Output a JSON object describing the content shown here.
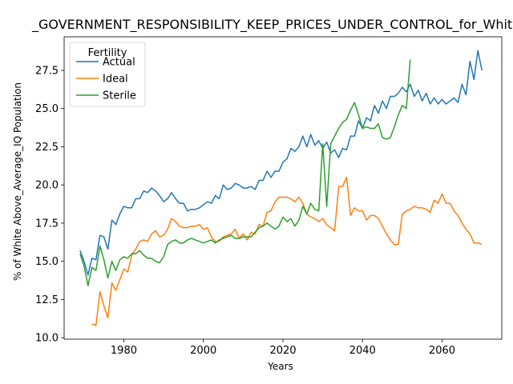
{
  "chart_data": {
    "type": "line",
    "title": "_GOVERNMENT_RESPONSIBILITY_KEEP_PRICES_UNDER_CONTROL_for_White_A",
    "xlabel": "Years",
    "ylabel": "% of White Above_Average_IQ Population",
    "xlim": [
      1965,
      2075
    ],
    "ylim": [
      9.9,
      29.7
    ],
    "xticks": [
      1980,
      2000,
      2020,
      2040,
      2060
    ],
    "yticks": [
      10.0,
      12.5,
      15.0,
      17.5,
      20.0,
      22.5,
      25.0,
      27.5
    ],
    "ytick_labels": [
      "10.0",
      "12.5",
      "15.0",
      "17.5",
      "20.0",
      "22.5",
      "25.0",
      "27.5"
    ],
    "legend": {
      "title": "Fertility",
      "position": "top-left"
    },
    "series": [
      {
        "name": "Actual",
        "color": "#1f77b4",
        "x": [
          1969,
          1970,
          1971,
          1972,
          1973,
          1974,
          1975,
          1976,
          1977,
          1978,
          1979,
          1980,
          1981,
          1982,
          1983,
          1984,
          1985,
          1986,
          1987,
          1988,
          1989,
          1990,
          1991,
          1992,
          1993,
          1994,
          1995,
          1996,
          1997,
          1998,
          1999,
          2000,
          2001,
          2002,
          2003,
          2004,
          2005,
          2006,
          2007,
          2008,
          2009,
          2010,
          2011,
          2012,
          2013,
          2014,
          2015,
          2016,
          2017,
          2018,
          2019,
          2020,
          2021,
          2022,
          2023,
          2024,
          2025,
          2026,
          2027,
          2028,
          2029,
          2030,
          2031,
          2032,
          2033,
          2034,
          2035,
          2036,
          2037,
          2038,
          2039,
          2040,
          2041,
          2042,
          2043,
          2044,
          2045,
          2046,
          2047,
          2048,
          2049,
          2050,
          2051,
          2052,
          2053,
          2054,
          2055,
          2056,
          2057,
          2058,
          2059,
          2060,
          2061,
          2062,
          2063,
          2064,
          2065,
          2066,
          2067,
          2068,
          2069,
          2070
        ],
        "y": [
          15.7,
          15.0,
          14.1,
          15.2,
          15.1,
          16.7,
          16.6,
          15.8,
          17.7,
          17.4,
          18.1,
          18.6,
          18.5,
          18.5,
          19.1,
          19.1,
          19.6,
          19.5,
          19.8,
          19.6,
          19.3,
          18.9,
          19.1,
          19.5,
          19.1,
          18.8,
          18.8,
          18.3,
          18.4,
          18.4,
          18.5,
          18.7,
          18.9,
          18.8,
          19.3,
          19.1,
          20.0,
          19.7,
          19.8,
          20.1,
          20.0,
          19.8,
          19.8,
          19.9,
          19.7,
          20.3,
          20.3,
          20.9,
          20.5,
          20.9,
          20.9,
          21.5,
          21.7,
          22.4,
          22.2,
          22.5,
          23.2,
          22.5,
          23.3,
          22.6,
          22.9,
          22.4,
          22.8,
          22.1,
          22.3,
          21.8,
          22.4,
          22.3,
          23.2,
          23.2,
          24.2,
          23.7,
          24.4,
          24.2,
          25.2,
          24.7,
          25.5,
          25.0,
          25.8,
          25.8,
          26.0,
          26.4,
          26.1,
          26.6,
          25.8,
          26.2,
          25.5,
          26.0,
          25.3,
          25.7,
          25.3,
          25.6,
          25.3,
          25.5,
          25.7,
          25.4,
          26.6,
          25.9,
          28.1,
          26.9,
          28.8,
          27.5
        ]
      },
      {
        "name": "Ideal",
        "color": "#ff7f0e",
        "x": [
          1972,
          1973,
          1974,
          1975,
          1976,
          1977,
          1978,
          1979,
          1980,
          1981,
          1982,
          1983,
          1984,
          1985,
          1986,
          1987,
          1988,
          1989,
          1990,
          1991,
          1992,
          1993,
          1994,
          1995,
          1996,
          1997,
          1998,
          1999,
          2000,
          2001,
          2002,
          2003,
          2004,
          2005,
          2006,
          2007,
          2008,
          2009,
          2010,
          2011,
          2012,
          2013,
          2014,
          2015,
          2016,
          2017,
          2018,
          2019,
          2020,
          2021,
          2022,
          2023,
          2024,
          2025,
          2026,
          2027,
          2028,
          2029,
          2030,
          2031,
          2032,
          2033,
          2034,
          2035,
          2036,
          2037,
          2038,
          2039,
          2040,
          2041,
          2042,
          2043,
          2044,
          2045,
          2046,
          2047,
          2048,
          2049,
          2050,
          2051,
          2052,
          2053,
          2054,
          2055,
          2056,
          2057,
          2058,
          2059,
          2060,
          2061,
          2062,
          2063,
          2064,
          2065,
          2066,
          2067,
          2068,
          2069,
          2070
        ],
        "y": [
          10.9,
          10.8,
          13.0,
          12.1,
          11.3,
          13.6,
          13.1,
          13.8,
          14.5,
          14.3,
          15.4,
          15.8,
          16.3,
          16.4,
          16.3,
          16.8,
          17.0,
          16.6,
          16.7,
          17.1,
          17.8,
          17.6,
          17.3,
          17.2,
          17.2,
          17.3,
          17.3,
          17.4,
          17.1,
          17.2,
          16.6,
          16.3,
          16.3,
          16.6,
          16.7,
          16.8,
          17.1,
          16.5,
          16.8,
          16.4,
          16.9,
          16.8,
          17.4,
          17.3,
          18.2,
          18.3,
          18.9,
          19.2,
          19.2,
          19.2,
          19.1,
          18.9,
          19.2,
          18.8,
          18.1,
          17.9,
          17.8,
          17.6,
          17.8,
          17.4,
          17.2,
          17.0,
          19.9,
          19.9,
          20.5,
          18.0,
          18.5,
          18.3,
          18.3,
          17.7,
          18.0,
          18.0,
          17.8,
          17.3,
          16.8,
          16.4,
          16.1,
          16.1,
          18.1,
          18.3,
          18.4,
          18.6,
          18.5,
          18.5,
          18.4,
          18.2,
          19.0,
          18.8,
          19.4,
          18.8,
          18.8,
          18.3,
          18.0,
          17.5,
          17.1,
          16.8,
          16.2,
          16.2,
          16.1
        ]
      },
      {
        "name": "Sterile",
        "color": "#2ca02c",
        "x": [
          1969,
          1970,
          1971,
          1972,
          1973,
          1974,
          1975,
          1976,
          1977,
          1978,
          1979,
          1980,
          1981,
          1982,
          1983,
          1984,
          1985,
          1986,
          1987,
          1988,
          1989,
          1990,
          1991,
          1992,
          1993,
          1994,
          1995,
          1996,
          1997,
          1998,
          1999,
          2000,
          2001,
          2002,
          2003,
          2004,
          2005,
          2006,
          2007,
          2008,
          2009,
          2010,
          2011,
          2012,
          2013,
          2014,
          2015,
          2016,
          2017,
          2018,
          2019,
          2020,
          2021,
          2022,
          2023,
          2024,
          2025,
          2026,
          2027,
          2028,
          2029,
          2030,
          2031,
          2032,
          2033,
          2034,
          2035,
          2036,
          2037,
          2038,
          2039,
          2040,
          2041,
          2042,
          2043,
          2044,
          2045,
          2046,
          2047,
          2048,
          2049,
          2050,
          2051,
          2052
        ],
        "y": [
          15.5,
          14.7,
          13.4,
          14.6,
          14.4,
          16.0,
          15.1,
          13.9,
          15.0,
          14.4,
          15.1,
          15.3,
          15.2,
          15.5,
          15.5,
          15.7,
          15.4,
          15.2,
          15.2,
          15.0,
          14.9,
          15.3,
          16.1,
          16.3,
          16.4,
          16.2,
          16.2,
          16.4,
          16.5,
          16.4,
          16.3,
          16.2,
          16.3,
          16.4,
          16.2,
          16.4,
          16.5,
          16.6,
          16.7,
          16.5,
          16.5,
          16.6,
          16.6,
          16.6,
          16.9,
          17.2,
          17.3,
          17.5,
          17.3,
          17.1,
          17.3,
          17.9,
          17.6,
          17.8,
          17.3,
          17.7,
          18.6,
          18.1,
          18.8,
          18.4,
          18.3,
          22.7,
          18.6,
          22.7,
          23.2,
          23.7,
          24.1,
          24.3,
          24.9,
          25.4,
          24.6,
          23.7,
          23.8,
          23.7,
          23.7,
          24.0,
          23.1,
          23.0,
          23.1,
          23.8,
          24.6,
          25.2,
          25.0,
          28.2
        ]
      }
    ]
  }
}
